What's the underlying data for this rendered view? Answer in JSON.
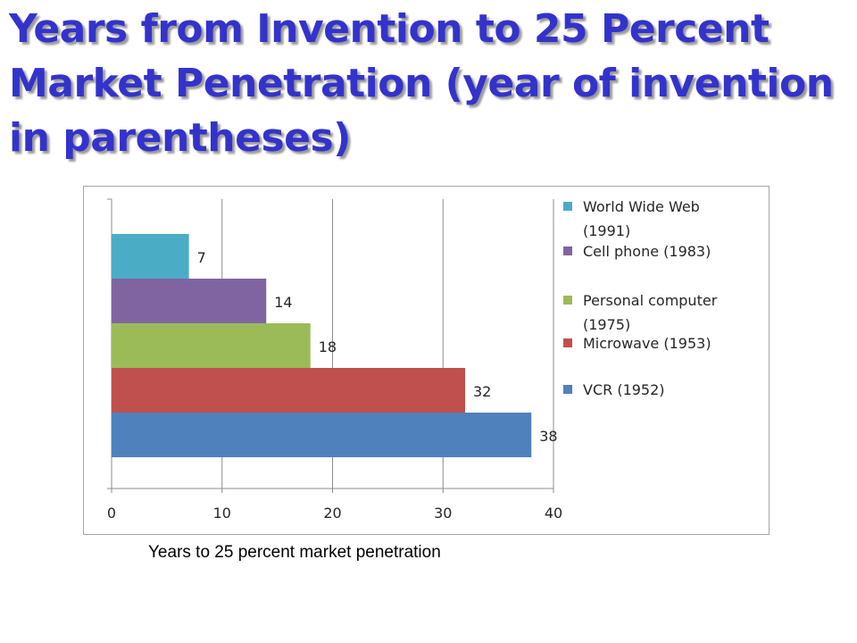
{
  "slide": {
    "title": "Years from Invention to 25 Percent Market Penetration (year of invention in parentheses)"
  },
  "colors": {
    "title": "#3333cc",
    "World Wide Web (1991)": "#4bacc6",
    "Cell phone (1983)": "#8064a2",
    "Personal computer (1975)": "#9bbb59",
    "Microwave (1953)": "#c0504d",
    "VCR (1952)": "#4f81bd"
  },
  "chart_data": {
    "type": "bar",
    "orientation": "horizontal",
    "title": "",
    "xlabel": "Years to 25 percent market penetration",
    "ylabel": "",
    "xlim": [
      0,
      40
    ],
    "x_ticks": [
      0,
      10,
      20,
      30,
      40
    ],
    "grid": true,
    "legend_position": "right",
    "series": [
      {
        "name": "World Wide Web (1991)",
        "values": [
          7
        ]
      },
      {
        "name": "Cell phone (1983)",
        "values": [
          14
        ]
      },
      {
        "name": "Personal computer (1975)",
        "values": [
          18
        ]
      },
      {
        "name": "Microwave (1953)",
        "values": [
          32
        ]
      },
      {
        "name": "VCR (1952)",
        "values": [
          38
        ]
      }
    ],
    "legend_entries": [
      {
        "series": "World Wide Web (1991)",
        "lines": [
          "World Wide Web",
          "(1991)"
        ]
      },
      {
        "series": "Cell phone (1983)",
        "lines": [
          "Cell phone (1983)"
        ]
      },
      {
        "series": "Personal computer (1975)",
        "lines": [
          "Personal computer",
          "(1975)"
        ]
      },
      {
        "series": "Microwave (1953)",
        "lines": [
          "Microwave (1953)"
        ]
      },
      {
        "series": "VCR (1952)",
        "lines": [
          "VCR (1952)"
        ]
      }
    ]
  }
}
